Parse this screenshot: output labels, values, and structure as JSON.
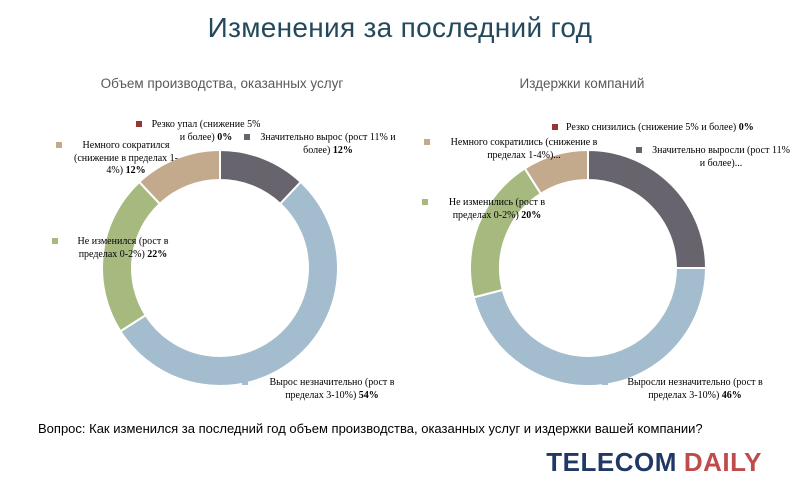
{
  "page": {
    "title": "Изменения за последний год",
    "question": "Вопрос: Как изменился за последний год объем производства, оказанных услуг и издержки вашей компании?",
    "logo": {
      "telecom": "TELECOM",
      "daily": "DAILY"
    }
  },
  "colors": {
    "title": "#24495c",
    "subtitle": "#595959",
    "logo_telecom": "#1f3864",
    "logo_daily": "#bf4b4b",
    "sharp_drop": "#943634",
    "strong_growth": "#67646e",
    "slight_growth": "#a3bcce",
    "no_change": "#a6ba80",
    "slight_drop": "#c4aa8d"
  },
  "chart_data": [
    {
      "type": "donut",
      "title": "Объем производства, оказанных услуг",
      "slices": [
        {
          "text": "Значительно вырос (рост 11% и более)",
          "pct": "12%",
          "value": 12,
          "color": "#67646e"
        },
        {
          "text": "Вырос незначительно (рост в пределах 3-10%)",
          "pct": "54%",
          "value": 54,
          "color": "#a3bcce"
        },
        {
          "text": "Не изменился (рост в пределах 0-2%)",
          "pct": "22%",
          "value": 22,
          "color": "#a6ba80"
        },
        {
          "text": "Немного сократился (снижение в пределах 1-4%)",
          "pct": "12%",
          "value": 12,
          "color": "#c4aa8d"
        },
        {
          "text": "Резко упал (снижение 5% и более)",
          "pct": "0%",
          "value": 0,
          "color": "#943634"
        }
      ]
    },
    {
      "type": "donut",
      "title": "Издержки компаний",
      "slices": [
        {
          "text": "Значительно выросли (рост 11% и более)...",
          "pct": "",
          "value": 25,
          "color": "#67646e"
        },
        {
          "text": "Выросли незначительно (рост в пределах 3-10%)",
          "pct": "46%",
          "value": 46,
          "color": "#a3bcce"
        },
        {
          "text": "Не изменились (рост в пределах 0-2%)",
          "pct": "20%",
          "value": 20,
          "color": "#a6ba80"
        },
        {
          "text": "Немного сократились (снижение в пределах 1-4%)...",
          "pct": "",
          "value": 9,
          "color": "#c4aa8d"
        },
        {
          "text": "Резко снизились (снижение 5% и более)",
          "pct": "0%",
          "value": 0,
          "color": "#943634"
        }
      ]
    }
  ]
}
